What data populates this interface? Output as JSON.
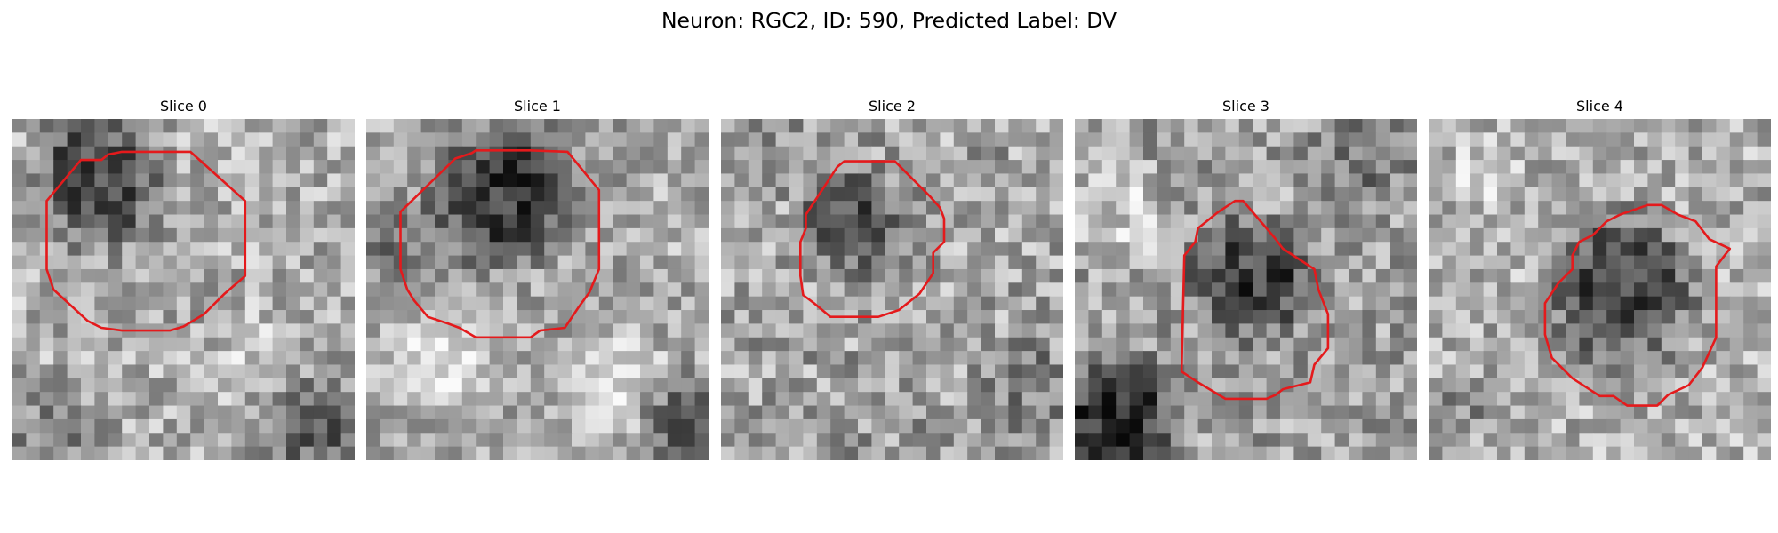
{
  "figure": {
    "title": "Neuron: RGC2, ID: 590, Predicted Label: DV"
  },
  "panels": [
    {
      "title": "Slice 0"
    },
    {
      "title": "Slice 1"
    },
    {
      "title": "Slice 2"
    },
    {
      "title": "Slice 3"
    },
    {
      "title": "Slice 4"
    }
  ],
  "colors": {
    "contour": "#e41a1c"
  }
}
